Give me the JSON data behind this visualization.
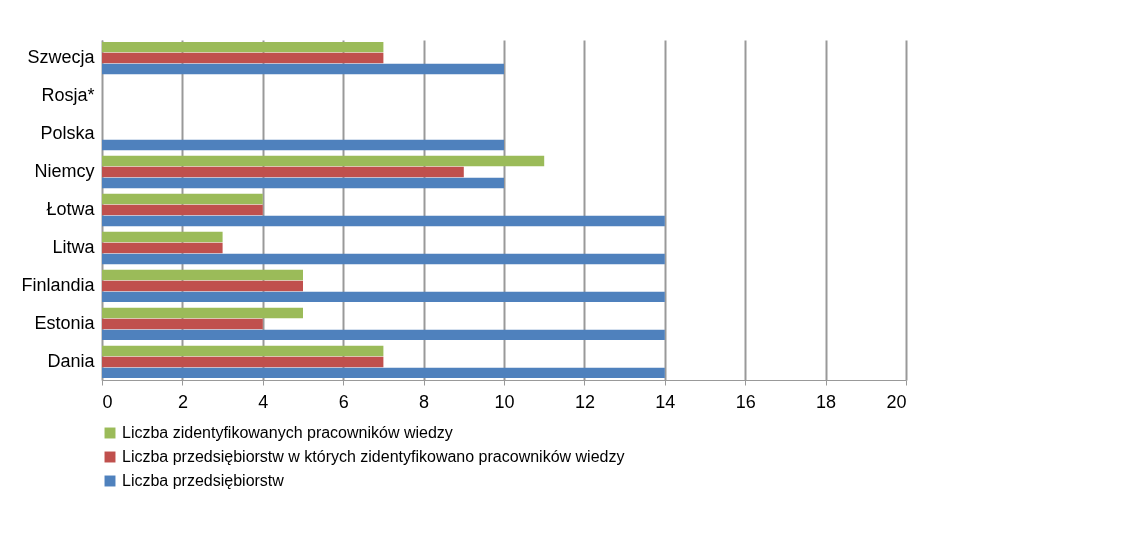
{
  "chart_data": {
    "type": "bar",
    "orientation": "horizontal",
    "categories": [
      "Szwecja",
      "Rosja*",
      "Polska",
      "Niemcy",
      "Łotwa",
      "Litwa ",
      "Finlandia",
      "Estonia",
      "Dania"
    ],
    "series": [
      {
        "name": "Liczba zidentyfikowanych pracowników wiedzy",
        "color": "#9bbb59",
        "values": [
          7,
          0,
          0,
          11,
          4,
          3,
          5,
          5,
          7
        ]
      },
      {
        "name": "Liczba przedsiębiorstw w których zidentyfikowano pracowników wiedzy",
        "color": "#c0504d",
        "values": [
          7,
          0,
          0,
          9,
          4,
          3,
          5,
          4,
          7
        ]
      },
      {
        "name": "Liczba przedsiębiorstw",
        "color": "#4f81bd",
        "values": [
          10,
          0,
          10,
          10,
          14,
          14,
          14,
          14,
          14
        ]
      }
    ],
    "xlim": [
      0,
      20
    ],
    "xticks": [
      0,
      2,
      4,
      6,
      8,
      10,
      12,
      14,
      16,
      18,
      20
    ],
    "grid": "x",
    "legend": "bottom"
  }
}
